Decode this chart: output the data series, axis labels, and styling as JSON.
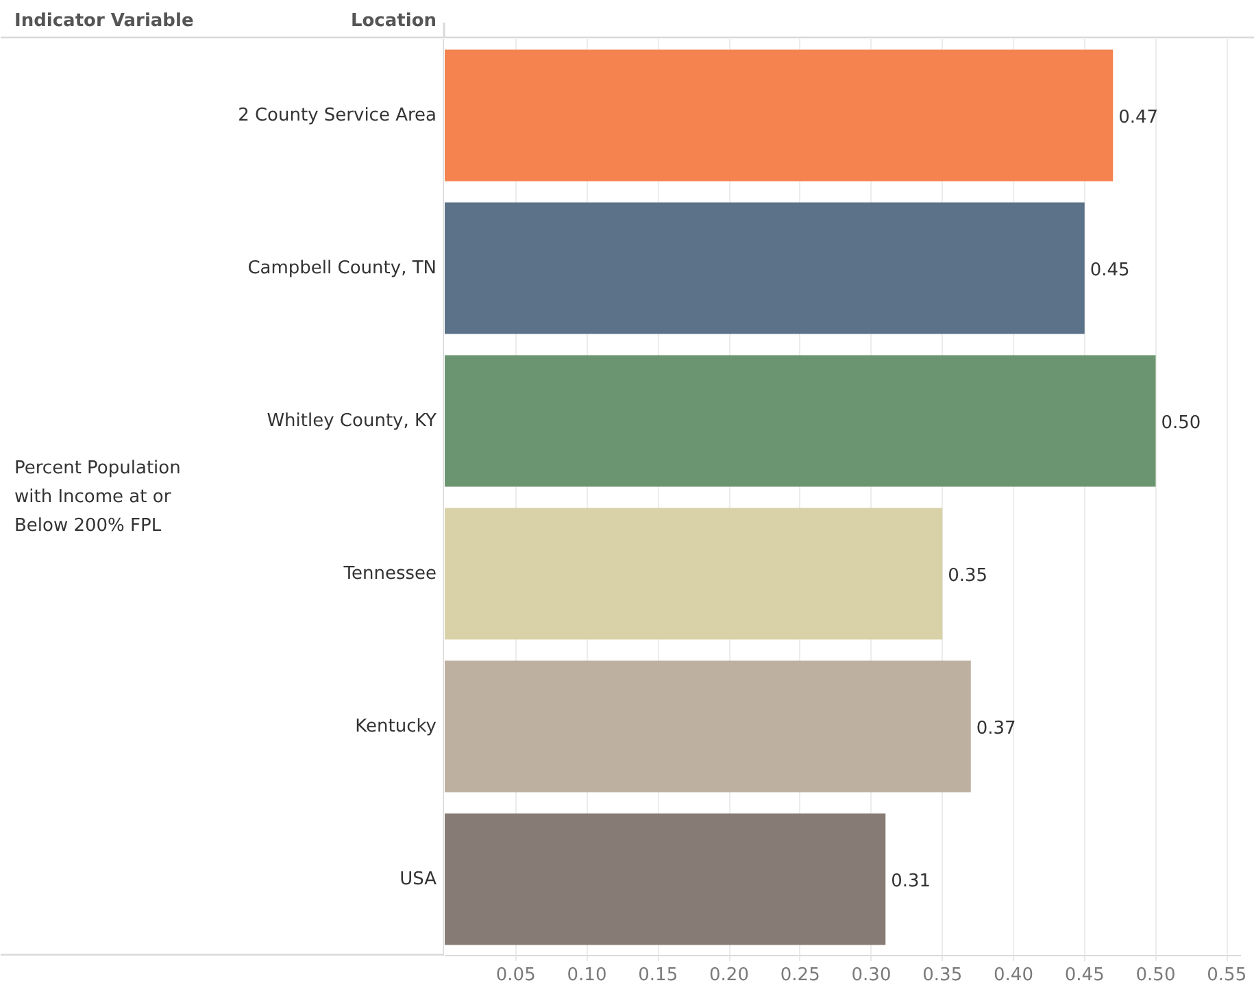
{
  "chart_data": {
    "type": "bar",
    "orientation": "horizontal",
    "ylabel": "Location",
    "annotations": [
      "Indicator Variable",
      "Percent Population with Income at or Below 200% FPL"
    ],
    "categories": [
      "2 County Service Area",
      "Campbell County, TN",
      "Whitley County, KY",
      "Tennessee",
      "Kentucky",
      "USA"
    ],
    "values": [
      0.47,
      0.45,
      0.5,
      0.35,
      0.37,
      0.31
    ],
    "value_labels": [
      "0.47",
      "0.45",
      "0.50",
      "0.35",
      "0.37",
      "0.31"
    ],
    "colors": [
      "#f4834f",
      "#5b7288",
      "#6b9570",
      "#d9d1a7",
      "#bdb0a0",
      "#877c75"
    ],
    "xlim": [
      0,
      0.56
    ],
    "xticks": [
      0.05,
      {
        "value": 0.1,
        "label": "0.10"
      },
      0.15,
      {
        "value": 0.2,
        "label": "0.20"
      },
      0.25,
      {
        "value": 0.3,
        "label": "0.30"
      },
      0.35,
      {
        "value": 0.4,
        "label": "0.40"
      },
      0.45,
      {
        "value": 0.5,
        "label": "0.50"
      },
      0.55
    ],
    "grid": "x"
  }
}
